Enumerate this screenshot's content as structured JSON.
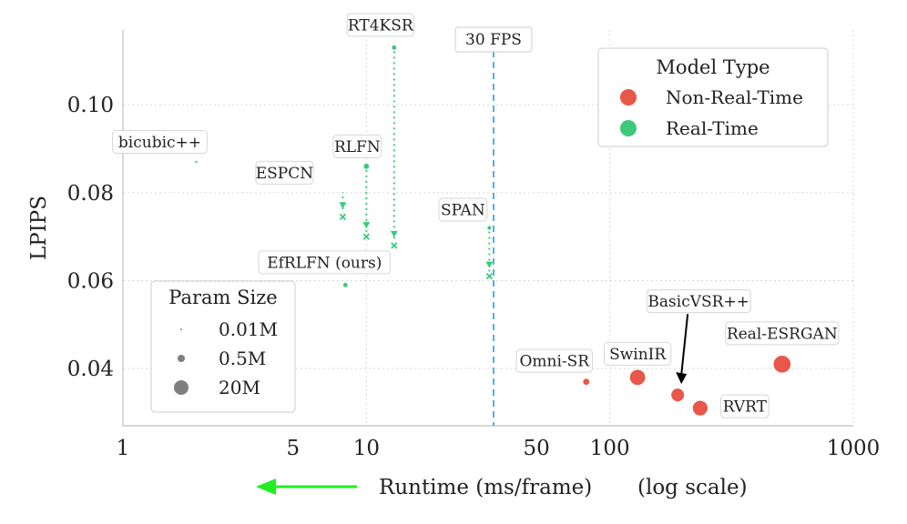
{
  "chart_data": {
    "type": "scatter",
    "x_scale": "log",
    "xlim": [
      1,
      1000
    ],
    "ylim": [
      0.027,
      0.117
    ],
    "xlabel": "Runtime (ms/frame)",
    "xlabel_note": "(log scale)",
    "ylabel": "LPIPS",
    "x_ticks": [
      1,
      5,
      10,
      50,
      100,
      1000
    ],
    "y_ticks": [
      0.04,
      0.06,
      0.08,
      0.1
    ],
    "grid": true,
    "fps_line": {
      "x": 33.3,
      "label": "30 FPS"
    },
    "points": [
      {
        "label": "bicubic++",
        "x": 2,
        "y": 0.087,
        "type": "Real-Time",
        "params_m": 0.05
      },
      {
        "label": "ESPCN",
        "x": 8,
        "y": 0.08,
        "type": "Real-Time",
        "params_m": 0.02,
        "after_y": 0.0745
      },
      {
        "label": "RLFN",
        "x": 10,
        "y": 0.086,
        "type": "Real-Time",
        "params_m": 0.5,
        "after_y": 0.07
      },
      {
        "label": "RT4KSR",
        "x": 13,
        "y": 0.113,
        "type": "Real-Time",
        "params_m": 0.3,
        "after_y": 0.068
      },
      {
        "label": "SPAN",
        "x": 32,
        "y": 0.072,
        "type": "Real-Time",
        "params_m": 0.2,
        "after_y": 0.061
      },
      {
        "label": "EfRLFN (ours)",
        "x": 8.2,
        "y": 0.059,
        "type": "Real-Time",
        "params_m": 0.3
      },
      {
        "label": "Omni-SR",
        "x": 80,
        "y": 0.037,
        "type": "Non-Real-Time",
        "params_m": 0.8
      },
      {
        "label": "SwinIR",
        "x": 130,
        "y": 0.038,
        "type": "Non-Real-Time",
        "params_m": 12
      },
      {
        "label": "BasicVSR++",
        "x": 190,
        "y": 0.034,
        "type": "Non-Real-Time",
        "params_m": 7
      },
      {
        "label": "RVRT",
        "x": 235,
        "y": 0.031,
        "type": "Non-Real-Time",
        "params_m": 11
      },
      {
        "label": "Real-ESRGAN",
        "x": 510,
        "y": 0.041,
        "type": "Non-Real-Time",
        "params_m": 17
      }
    ],
    "legend_model": {
      "title": "Model Type",
      "placement": "top-right",
      "entries": [
        {
          "label": "Non-Real-Time",
          "color": "#e8574a"
        },
        {
          "label": "Real-Time",
          "color": "#3dc97a"
        }
      ]
    },
    "legend_size": {
      "title": "Param Size",
      "placement": "lower-left",
      "entries": [
        {
          "label": "0.01M",
          "params_m": 0.01
        },
        {
          "label": "0.5M",
          "params_m": 0.5
        },
        {
          "label": "20M",
          "params_m": 20
        }
      ]
    }
  },
  "colors": {
    "real_time": "#3dc97a",
    "non_real_time": "#e8574a",
    "fps_line": "#5aaee0",
    "arrow_accent": "#22ee22"
  }
}
